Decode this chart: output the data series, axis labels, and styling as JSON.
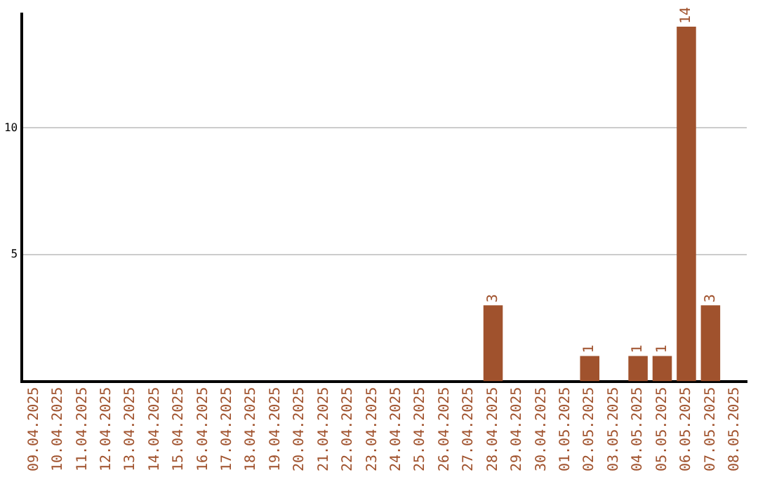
{
  "chart_data": {
    "type": "bar",
    "categories": [
      "09.04.2025",
      "10.04.2025",
      "11.04.2025",
      "12.04.2025",
      "13.04.2025",
      "14.04.2025",
      "15.04.2025",
      "16.04.2025",
      "17.04.2025",
      "18.04.2025",
      "19.04.2025",
      "20.04.2025",
      "21.04.2025",
      "22.04.2025",
      "23.04.2025",
      "24.04.2025",
      "25.04.2025",
      "26.04.2025",
      "27.04.2025",
      "28.04.2025",
      "29.04.2025",
      "30.04.2025",
      "01.05.2025",
      "02.05.2025",
      "03.05.2025",
      "04.05.2025",
      "05.05.2025",
      "06.05.2025",
      "07.05.2025",
      "08.05.2025"
    ],
    "values": [
      0,
      0,
      0,
      0,
      0,
      0,
      0,
      0,
      0,
      0,
      0,
      0,
      0,
      0,
      0,
      0,
      0,
      0,
      0,
      3,
      0,
      0,
      0,
      1,
      0,
      1,
      1,
      14,
      3,
      0
    ],
    "value_labels": [
      null,
      null,
      null,
      null,
      null,
      null,
      null,
      null,
      null,
      null,
      null,
      null,
      null,
      null,
      null,
      null,
      null,
      null,
      null,
      "3",
      null,
      null,
      null,
      "1",
      null,
      "1",
      "1",
      "14",
      "3",
      null
    ],
    "color": "#a0522d",
    "ylim": [
      0,
      14.5
    ],
    "yticks": [
      5,
      10
    ],
    "grid": "y",
    "legend": false
  }
}
